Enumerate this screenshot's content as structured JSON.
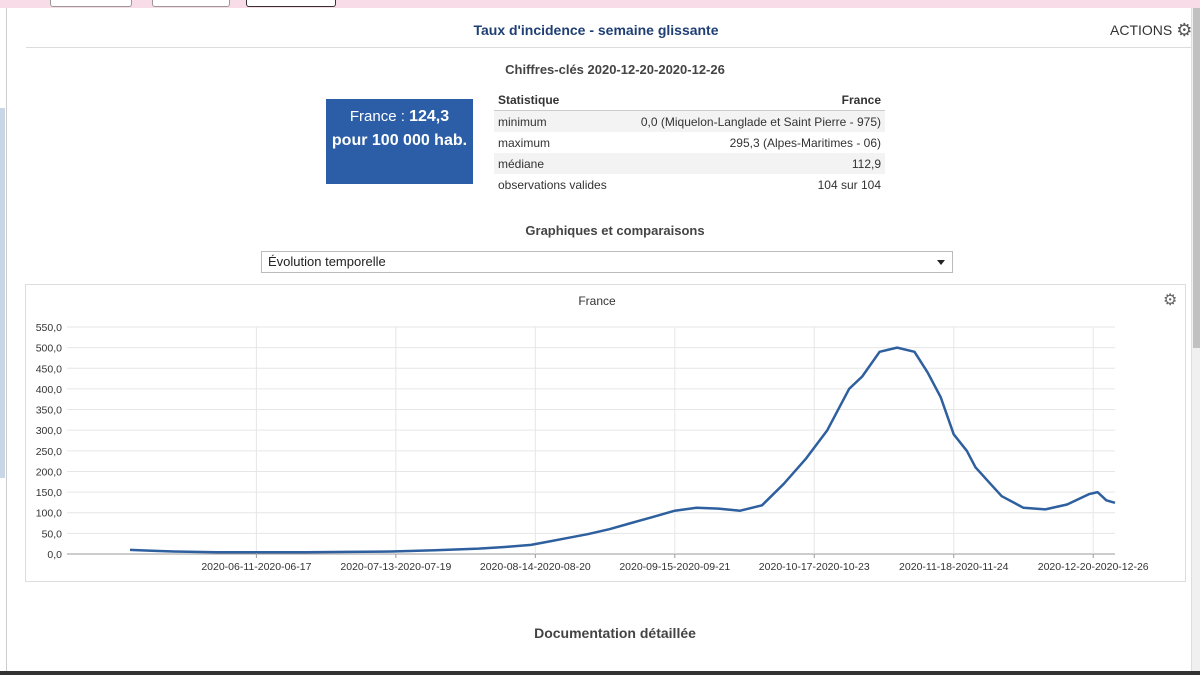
{
  "panel": {
    "title": "Taux d'incidence - semaine glissante",
    "actions_label": "ACTIONS",
    "actions_icon": "gear-icon"
  },
  "key_figures": {
    "title": "Chiffres-clés 2020-12-20-2020-12-26",
    "highlight": {
      "prefix": "France : ",
      "value": "124,3",
      "unit": "pour 100 000 hab.",
      "background": "#2b5ea7"
    },
    "table": {
      "header_stat": "Statistique",
      "header_zone": "France",
      "rows": [
        {
          "label": "minimum",
          "value": "0,0 (Miquelon-Langlade et Saint Pierre - 975)"
        },
        {
          "label": "maximum",
          "value": "295,3 (Alpes-Maritimes - 06)"
        },
        {
          "label": "médiane",
          "value": "112,9"
        },
        {
          "label": "observations valides",
          "value": "104 sur 104"
        }
      ]
    }
  },
  "graphs": {
    "title": "Graphiques et comparaisons",
    "selected_view": "Évolution temporelle"
  },
  "chart_data": {
    "type": "line",
    "title": "France",
    "xlabel": "",
    "ylabel": "",
    "ylim": [
      0,
      550
    ],
    "yticks": [
      "0,0",
      "50,0",
      "100,0",
      "150,0",
      "200,0",
      "250,0",
      "300,0",
      "350,0",
      "400,0",
      "450,0",
      "500,0",
      "550,0"
    ],
    "xtick_labels": [
      {
        "index": 29,
        "label": "2020-06-11-2020-06-17"
      },
      {
        "index": 61,
        "label": "2020-07-13-2020-07-19"
      },
      {
        "index": 93,
        "label": "2020-08-14-2020-08-20"
      },
      {
        "index": 125,
        "label": "2020-09-15-2020-09-21"
      },
      {
        "index": 157,
        "label": "2020-10-17-2020-10-23"
      },
      {
        "index": 189,
        "label": "2020-11-18-2020-11-24"
      },
      {
        "index": 221,
        "label": "2020-12-20-2020-12-26"
      }
    ],
    "n_points": 222,
    "grid": true,
    "color": "#2e5f9e",
    "key_points": [
      [
        0,
        10
      ],
      [
        5,
        8
      ],
      [
        10,
        6
      ],
      [
        20,
        4
      ],
      [
        30,
        4
      ],
      [
        40,
        4
      ],
      [
        50,
        5
      ],
      [
        60,
        6
      ],
      [
        70,
        9
      ],
      [
        80,
        13
      ],
      [
        86,
        17
      ],
      [
        92,
        22
      ],
      [
        96,
        30
      ],
      [
        100,
        38
      ],
      [
        105,
        48
      ],
      [
        110,
        60
      ],
      [
        115,
        75
      ],
      [
        120,
        90
      ],
      [
        125,
        105
      ],
      [
        130,
        112
      ],
      [
        135,
        110
      ],
      [
        140,
        105
      ],
      [
        145,
        118
      ],
      [
        150,
        170
      ],
      [
        155,
        230
      ],
      [
        160,
        300
      ],
      [
        165,
        400
      ],
      [
        168,
        430
      ],
      [
        172,
        490
      ],
      [
        176,
        500
      ],
      [
        180,
        490
      ],
      [
        183,
        440
      ],
      [
        186,
        380
      ],
      [
        189,
        290
      ],
      [
        192,
        250
      ],
      [
        194,
        210
      ],
      [
        197,
        175
      ],
      [
        200,
        140
      ],
      [
        205,
        112
      ],
      [
        210,
        108
      ],
      [
        215,
        120
      ],
      [
        220,
        145
      ],
      [
        222,
        150
      ],
      [
        224,
        130
      ],
      [
        226,
        124
      ]
    ]
  },
  "documentation": {
    "title": "Documentation détaillée"
  }
}
